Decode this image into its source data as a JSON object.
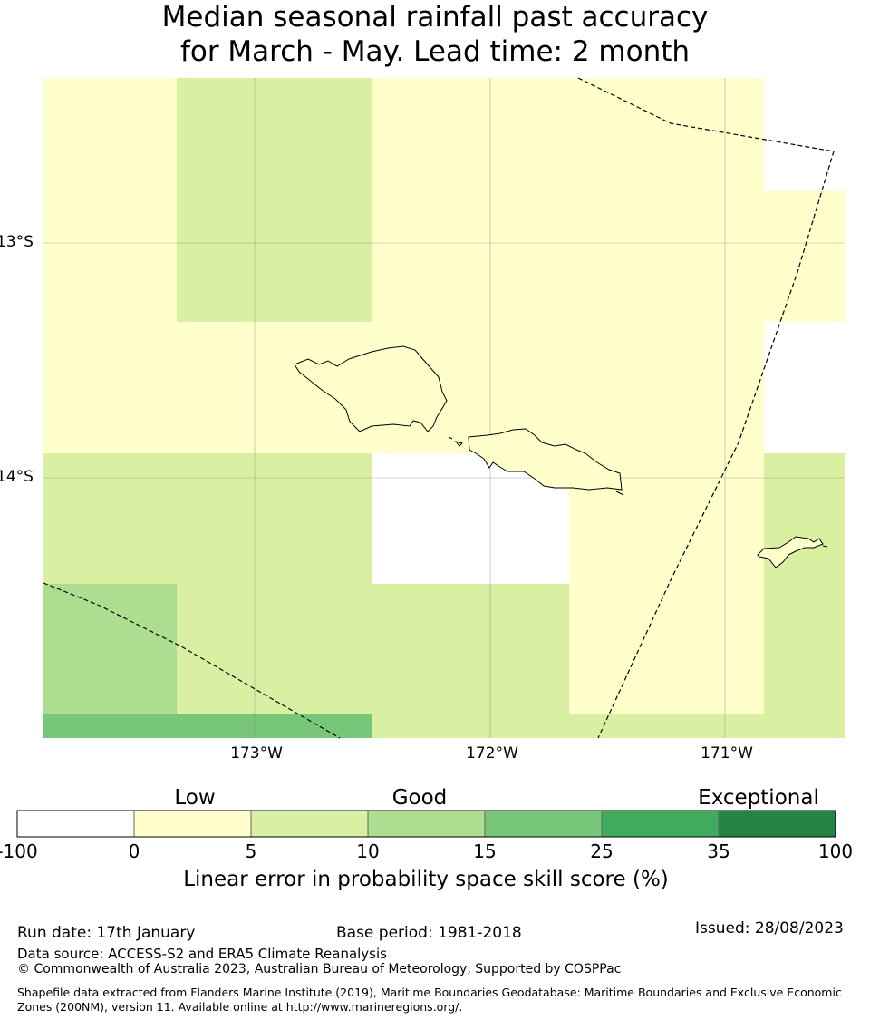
{
  "title_line1": "Median seasonal rainfall past accuracy",
  "title_line2": "for March - May. Lead time: 2 month",
  "map": {
    "lat_labels": [
      "13°S",
      "14°S"
    ],
    "lon_labels": [
      "173°W",
      "172°W",
      "171°W"
    ],
    "cell_colors": {
      "white": "#ffffff",
      "low": "#ffffcc",
      "c5": "#d9f0a3",
      "c10": "#addd8e",
      "c15": "#78c679"
    },
    "features": [
      "upolu-island",
      "savaii-island",
      "tutuila-island",
      "eez-boundary"
    ]
  },
  "legend": {
    "categories": [
      "Low",
      "Good",
      "Exceptional"
    ],
    "ticks": [
      "-100",
      "0",
      "5",
      "10",
      "15",
      "25",
      "35",
      "100"
    ],
    "colors": [
      "#ffffff",
      "#ffffcc",
      "#d9f0a3",
      "#addd8e",
      "#78c679",
      "#41ab5d",
      "#238443"
    ],
    "label": "Linear error in probability space skill score (%)"
  },
  "footer": {
    "run_date": "Run date: 17th January",
    "base_period": "Base period: 1981-2018",
    "issued": "Issued: 28/08/2023",
    "data_source": "Data source: ACCESS-S2 and ERA5 Climate Reanalysis",
    "copyright": "© Commonwealth of Australia 2023, Australian Bureau of Meteorology, Supported by COSPPac",
    "shapefile": "Shapefile data extracted from Flanders Marine Institute (2019), Maritime Boundaries Geodatabase: Maritime Boundaries and Exclusive Economic Zones (200NM), version 11. Available online at http://www.marineregions.org/."
  }
}
